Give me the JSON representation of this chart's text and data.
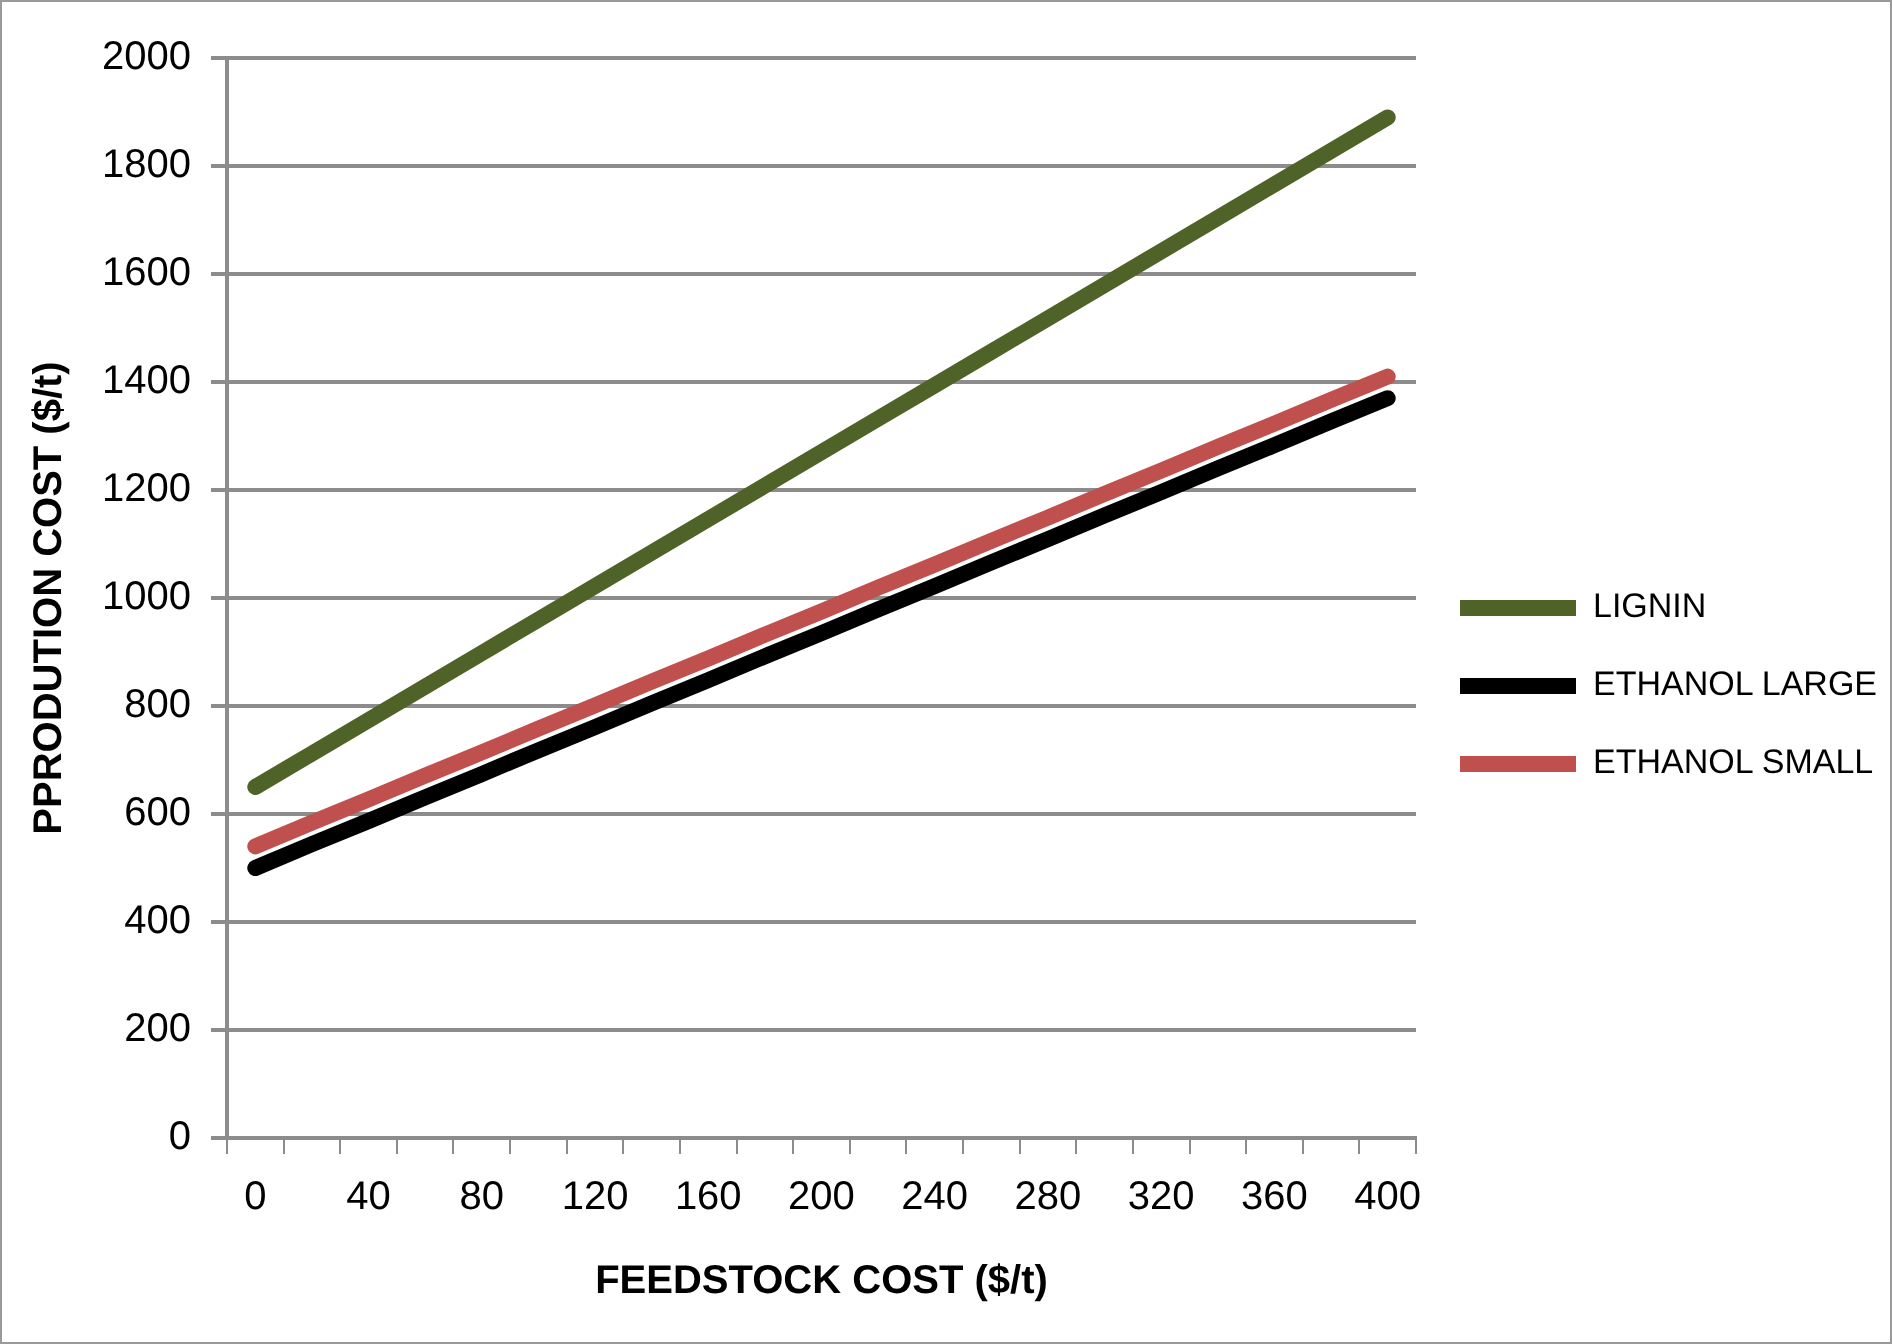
{
  "chart_data": {
    "type": "line",
    "xlabel": "FEEDSTOCK COST ($/t)",
    "ylabel": "PPRODUTION COST ($/t)",
    "categories": [
      "0",
      null,
      "40",
      null,
      "80",
      null,
      "120",
      null,
      "160",
      null,
      "200",
      null,
      "240",
      null,
      "280",
      null,
      "320",
      null,
      "360",
      null,
      "400"
    ],
    "series": [
      {
        "name": "LIGNIN",
        "color": "#4f6228",
        "values": [
          650,
          712,
          774,
          836,
          898,
          960,
          1022,
          1084,
          1146,
          1208,
          1270,
          1332,
          1394,
          1456,
          1518,
          1580,
          1642,
          1704,
          1766,
          1828,
          1890
        ]
      },
      {
        "name": "ETHANOL LARGE",
        "color": "#000000",
        "values": [
          500,
          544,
          587,
          631,
          674,
          718,
          761,
          805,
          848,
          892,
          935,
          979,
          1022,
          1066,
          1109,
          1153,
          1196,
          1240,
          1283,
          1327,
          1370
        ]
      },
      {
        "name": "ETHANOL SMALL",
        "color": "#c0504d",
        "values": [
          540,
          584,
          627,
          671,
          714,
          758,
          801,
          845,
          888,
          932,
          975,
          1019,
          1062,
          1106,
          1149,
          1193,
          1236,
          1280,
          1323,
          1367,
          1410
        ]
      }
    ],
    "ylim": [
      0,
      2000
    ],
    "yticks": [
      0,
      200,
      400,
      600,
      800,
      1000,
      1200,
      1400,
      1600,
      1800,
      2000
    ],
    "grid": "y",
    "legend": "right",
    "marker": "none",
    "line_style": "solid"
  }
}
